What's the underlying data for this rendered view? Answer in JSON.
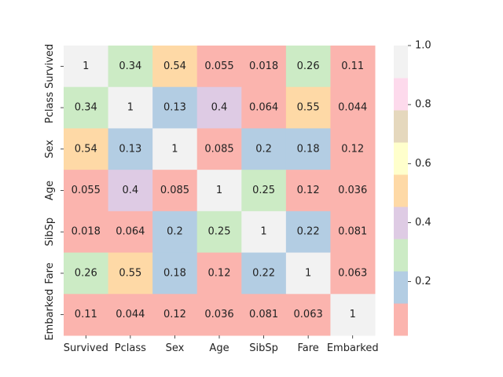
{
  "chart_data": {
    "type": "heatmap",
    "rows": [
      "Survived",
      "Pclass",
      "Sex",
      "Age",
      "SibSp",
      "Fare",
      "Embarked"
    ],
    "columns": [
      "Survived",
      "Pclass",
      "Sex",
      "Age",
      "SibSp",
      "Fare",
      "Embarked"
    ],
    "values": [
      [
        1,
        0.34,
        0.54,
        0.055,
        0.018,
        0.26,
        0.11
      ],
      [
        0.34,
        1,
        0.13,
        0.4,
        0.064,
        0.55,
        0.044
      ],
      [
        0.54,
        0.13,
        1,
        0.085,
        0.2,
        0.18,
        0.12
      ],
      [
        0.055,
        0.4,
        0.085,
        1,
        0.25,
        0.12,
        0.036
      ],
      [
        0.018,
        0.064,
        0.2,
        0.25,
        1,
        0.22,
        0.081
      ],
      [
        0.26,
        0.55,
        0.18,
        0.12,
        0.22,
        1,
        0.063
      ],
      [
        0.11,
        0.044,
        0.12,
        0.036,
        0.081,
        0.063,
        1
      ]
    ],
    "cell_labels": [
      [
        "1",
        "0.34",
        "0.54",
        "0.055",
        "0.018",
        "0.26",
        "0.11"
      ],
      [
        "0.34",
        "1",
        "0.13",
        "0.4",
        "0.064",
        "0.55",
        "0.044"
      ],
      [
        "0.54",
        "0.13",
        "1",
        "0.085",
        "0.2",
        "0.18",
        "0.12"
      ],
      [
        "0.055",
        "0.4",
        "0.085",
        "1",
        "0.25",
        "0.12",
        "0.036"
      ],
      [
        "0.018",
        "0.064",
        "0.2",
        "0.25",
        "1",
        "0.22",
        "0.081"
      ],
      [
        "0.26",
        "0.55",
        "0.18",
        "0.12",
        "0.22",
        "1",
        "0.063"
      ],
      [
        "0.11",
        "0.044",
        "0.12",
        "0.036",
        "0.081",
        "0.063",
        "1"
      ]
    ],
    "colormap": "Pastel1",
    "color_range": [
      0.018,
      1
    ],
    "colorbar": {
      "ticks": [
        0.2,
        0.4,
        0.6,
        0.8,
        1.0
      ],
      "tick_labels": [
        "0.2",
        "0.4",
        "0.6",
        "0.8",
        "1.0"
      ],
      "placement": "right"
    },
    "palette": [
      "#fbb4ae",
      "#b3cde3",
      "#ccebc5",
      "#decbe4",
      "#fed9a6",
      "#ffffcc",
      "#e5d8bd",
      "#fddaec",
      "#f2f2f2"
    ],
    "title": "",
    "xlabel": "",
    "ylabel": ""
  }
}
